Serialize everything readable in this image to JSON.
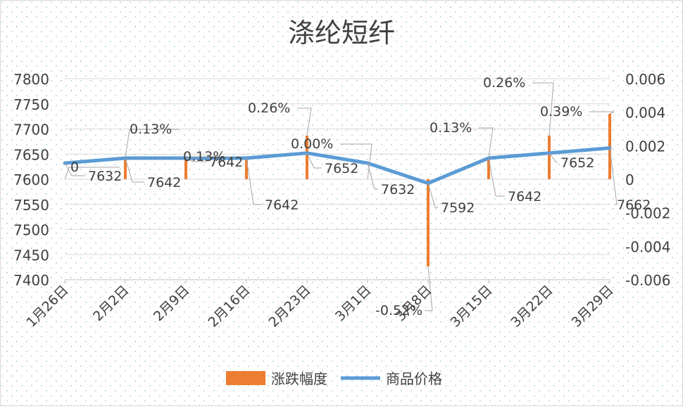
{
  "chart_data": {
    "type": "bar+line",
    "title": "涤纶短纤",
    "categories": [
      "1月26日",
      "2月2日",
      "2月9日",
      "2月16日",
      "2月23日",
      "3月1日",
      "3月8日",
      "3月15日",
      "3月22日",
      "3月29日"
    ],
    "series": [
      {
        "name": "涨跌幅度",
        "type": "bar",
        "axis": "right",
        "color": "#ED7D31",
        "values": [
          0,
          0.0013,
          0.0013,
          0.0013,
          0.0026,
          0,
          -0.0052,
          0.0013,
          0.0026,
          0.0039
        ],
        "labels": [
          "0",
          "0.13%",
          "0.13%",
          "",
          "0.26%",
          "0.00%",
          "-0.52%",
          "0.13%",
          "0.26%",
          "0.39%"
        ]
      },
      {
        "name": "商品价格",
        "type": "line",
        "axis": "left",
        "color": "#5B9BD5",
        "values": [
          7632,
          7642,
          7642,
          7642,
          7652,
          7632,
          7592,
          7642,
          7652,
          7662
        ],
        "labels": [
          "7632",
          "7642",
          "7642",
          "7642",
          "7652",
          "7632",
          "7592",
          "7642",
          "7652",
          "7662"
        ]
      }
    ],
    "y_left": {
      "min": 7400,
      "max": 7800,
      "ticks": [
        "7400",
        "7450",
        "7500",
        "7550",
        "7600",
        "7650",
        "7700",
        "7750",
        "7800"
      ]
    },
    "y_right": {
      "min": -0.006,
      "max": 0.006,
      "ticks": [
        "-0.006",
        "-0.004",
        "-0.002",
        "0",
        "0.002",
        "0.004",
        "0.006"
      ]
    },
    "grid": true,
    "legend": "bottom"
  }
}
